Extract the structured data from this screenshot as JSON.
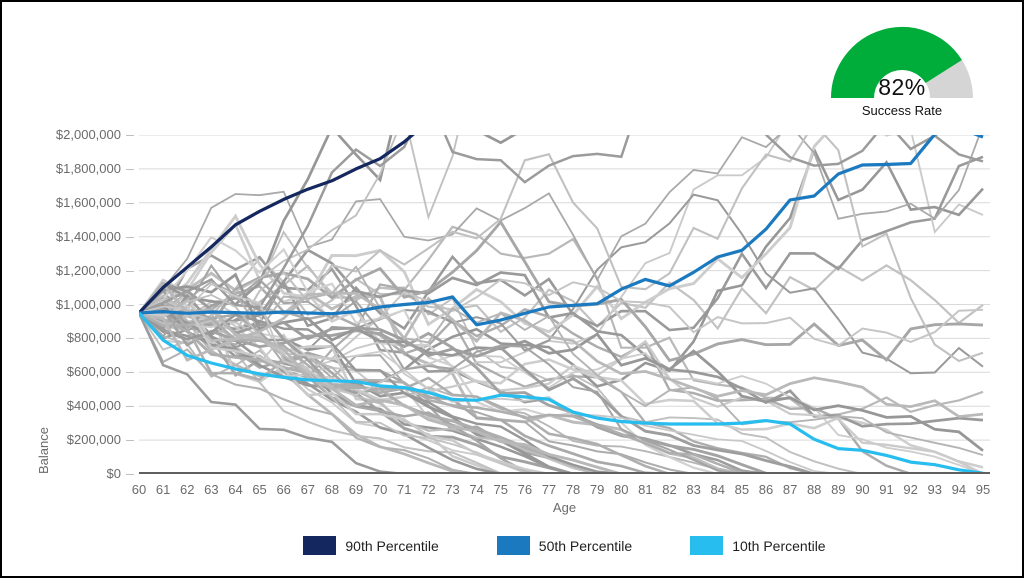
{
  "gauge": {
    "value": "82%",
    "label": "Success Rate",
    "percent": 82,
    "arc_color": "#00AC3A",
    "track_color": "#D5D5D5"
  },
  "legend": {
    "items": [
      {
        "label": "90th Percentile",
        "color": "#14285F"
      },
      {
        "label": "50th Percentile",
        "color": "#1B79C0"
      },
      {
        "label": "10th Percentile",
        "color": "#27BEEF"
      }
    ]
  },
  "chart_data": {
    "type": "line",
    "title": "",
    "xlabel": "Age",
    "ylabel": "Balance",
    "x": [
      60,
      61,
      62,
      63,
      64,
      65,
      66,
      67,
      68,
      69,
      70,
      71,
      72,
      73,
      74,
      75,
      76,
      77,
      78,
      79,
      80,
      81,
      82,
      83,
      84,
      85,
      86,
      87,
      88,
      89,
      90,
      91,
      92,
      93,
      94,
      95
    ],
    "ylim": [
      0,
      2000000
    ],
    "y_tick_step": 200000,
    "y_ticks": [
      "$0",
      "$200,000",
      "$400,000",
      "$600,000",
      "$800,000",
      "$1,000,000",
      "$1,200,000",
      "$1,400,000",
      "$1,600,000",
      "$1,800,000",
      "$2,000,000"
    ],
    "grid": "horizontal",
    "legend_position": "bottom",
    "series": [
      {
        "name": "90th Percentile",
        "color": "#14285F",
        "values": [
          950000,
          1100000,
          1220000,
          1340000,
          1470000,
          1550000,
          1620000,
          1680000,
          1730000,
          1800000,
          1860000,
          1960000,
          2080000,
          null,
          null,
          null,
          null,
          null,
          null,
          null,
          null,
          null,
          null,
          null,
          null,
          null,
          null,
          null,
          null,
          null,
          null,
          null,
          null,
          null,
          null,
          null
        ]
      },
      {
        "name": "50th Percentile",
        "color": "#1B79C0",
        "values": [
          950000,
          958000,
          948000,
          956000,
          952000,
          948000,
          956000,
          950000,
          946000,
          958000,
          985000,
          1000000,
          1012000,
          1045000,
          880000,
          908000,
          948000,
          985000,
          995000,
          1005000,
          1090000,
          1148000,
          1110000,
          1190000,
          1280000,
          1320000,
          1445000,
          1617000,
          1640000,
          1770000,
          1823000,
          1826000,
          1832000,
          2005000,
          2040000,
          1988000
        ]
      },
      {
        "name": "10th Percentile",
        "color": "#27BEEF",
        "values": [
          950000,
          790000,
          700000,
          655000,
          620000,
          590000,
          570000,
          555000,
          550000,
          545000,
          520000,
          510000,
          480000,
          440000,
          435000,
          465000,
          455000,
          440000,
          365000,
          330000,
          310000,
          300000,
          295000,
          295000,
          295000,
          300000,
          315000,
          295000,
          205000,
          150000,
          140000,
          110000,
          70000,
          55000,
          25000,
          5000
        ]
      }
    ],
    "background_simulations": {
      "description": "gray Monte Carlo trial paths",
      "count": 55,
      "seed": 11,
      "start_value": 950000,
      "gray_levels": [
        150,
        209
      ]
    },
    "axis_color": "#606060",
    "gridline_color": "#d9d9d9"
  }
}
